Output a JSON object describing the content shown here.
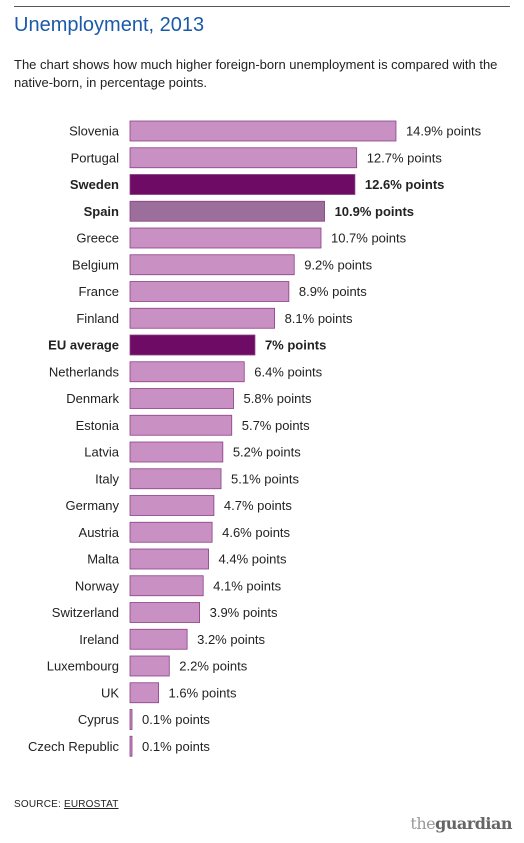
{
  "title": "Unemployment, 2013",
  "subtitle": "The chart shows how much higher foreign-born unemployment is compared with the native-born, in percentage points.",
  "source": {
    "prefix": "SOURCE: ",
    "link": "EUROSTAT"
  },
  "logo": {
    "the": "the",
    "name": "guardian"
  },
  "colors": {
    "default": "#c990c4",
    "sweden": "#6e0c65",
    "spain": "#9b6e9b",
    "eu": "#6e0c65",
    "bar_stroke": "#8a3f84"
  },
  "chart_data": {
    "type": "bar",
    "orientation": "horizontal",
    "categories": [
      "Slovenia",
      "Portugal",
      "Sweden",
      "Spain",
      "Greece",
      "Belgium",
      "France",
      "Finland",
      "EU average",
      "Netherlands",
      "Denmark",
      "Estonia",
      "Latvia",
      "Italy",
      "Germany",
      "Austria",
      "Malta",
      "Norway",
      "Switzerland",
      "Ireland",
      "Luxembourg",
      "UK",
      "Cyprus",
      "Czech Republic"
    ],
    "values": [
      14.9,
      12.7,
      12.6,
      10.9,
      10.7,
      9.2,
      8.9,
      8.1,
      7,
      6.4,
      5.8,
      5.7,
      5.2,
      5.1,
      4.7,
      4.6,
      4.4,
      4.1,
      3.9,
      3.2,
      2.2,
      1.6,
      0.1,
      0.1
    ],
    "data_labels": [
      "14.9% points",
      "12.7% points",
      "12.6% points",
      "10.9% points",
      "10.7% points",
      "9.2% points",
      "8.9% points",
      "8.1% points",
      "7% points",
      "6.4% points",
      "5.8% points",
      "5.7% points",
      "5.2% points",
      "5.1% points",
      "4.7% points",
      "4.6% points",
      "4.4% points",
      "4.1% points",
      "3.9% points",
      "3.2% points",
      "2.2% points",
      "1.6% points",
      "0.1% points",
      "0.1% points"
    ],
    "highlighted": [
      "Sweden",
      "Spain",
      "EU average"
    ],
    "title": "Unemployment, 2013"
  }
}
